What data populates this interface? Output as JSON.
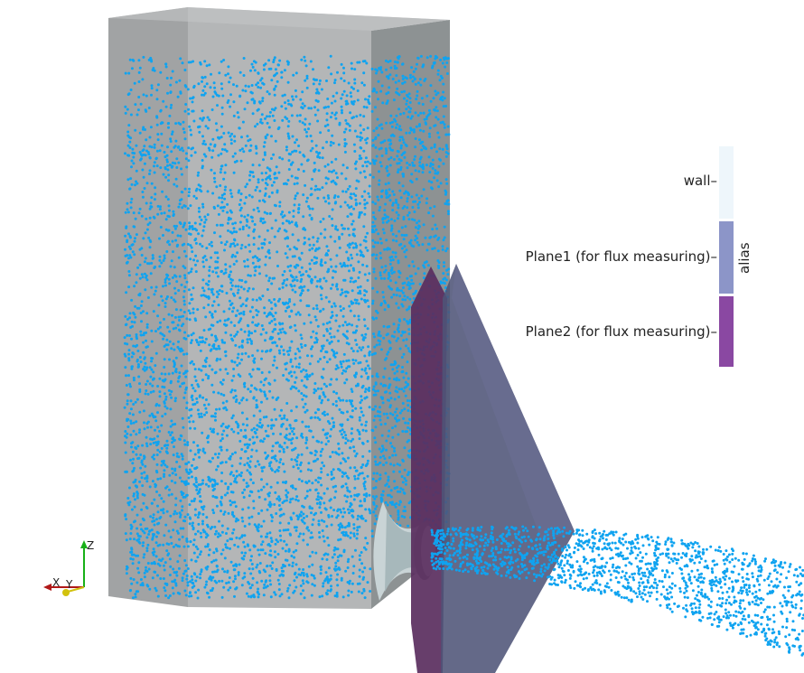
{
  "legend": {
    "title": "alias",
    "entries": [
      {
        "label": "wall",
        "color": "#eef6fb"
      },
      {
        "label": "Plane1 (for flux measuring)",
        "color": "#8c95c8"
      },
      {
        "label": "Plane2 (for flux measuring)",
        "color": "#8a48a2"
      }
    ]
  },
  "orientation_axes": {
    "x": "X",
    "y": "Y",
    "z": "Z"
  },
  "colors": {
    "particles": "#0fa3f0",
    "box_left_face": "#a1a3a4",
    "box_back_face": "#b4b6b7",
    "box_right_face": "#8d9293",
    "plane1": "#4e5477",
    "plane2": "#5a2e5e",
    "axis_x": "#b01818",
    "axis_y": "#d2c20e",
    "axis_z": "#18b018"
  }
}
